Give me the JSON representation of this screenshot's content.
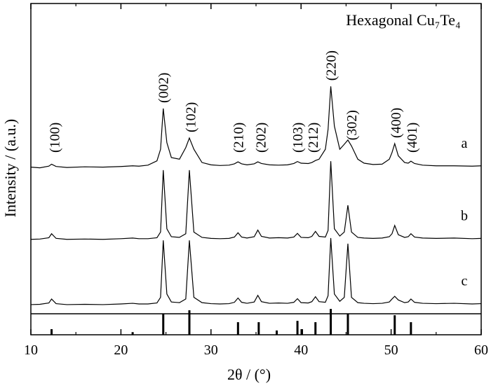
{
  "chart_data": {
    "type": "line",
    "title": "Hexagonal Cu₇Te₄",
    "x_label": "2θ / (°)",
    "y_label": "Intensity / (a.u.)",
    "xlim": [
      10,
      60
    ],
    "xticks": [
      10,
      20,
      30,
      40,
      50,
      60
    ],
    "xminorticks": [
      15,
      25,
      35,
      45,
      55
    ],
    "ylim": [
      0,
      100
    ],
    "x": [
      10,
      11,
      12,
      12.3,
      12.8,
      14,
      16,
      18,
      20,
      21.3,
      22,
      23,
      24,
      24.4,
      24.7,
      25.1,
      25.6,
      26.5,
      27.2,
      27.6,
      28.1,
      29,
      30,
      31,
      32,
      32.6,
      33,
      33.4,
      34,
      34.8,
      35.2,
      35.6,
      36.5,
      37.5,
      38.5,
      39.2,
      39.6,
      40,
      40.8,
      41.2,
      41.6,
      42,
      42.7,
      43,
      43.3,
      43.7,
      44.3,
      44.8,
      45.2,
      45.6,
      46.3,
      47,
      48,
      49,
      49.8,
      50.1,
      50.4,
      50.8,
      51.5,
      51.9,
      52.2,
      52.6,
      53.5,
      55,
      57,
      59,
      60
    ],
    "series": [
      {
        "name": "a",
        "color": "#000000",
        "values": [
          50.6,
          50.4,
          50.9,
          51.5,
          50.8,
          50.5,
          50.7,
          50.6,
          50.8,
          51.0,
          50.9,
          51.2,
          52.5,
          56,
          68.3,
          58,
          53.5,
          53,
          56.5,
          59.4,
          56,
          52,
          51.3,
          51.1,
          51.2,
          51.6,
          52.2,
          51.6,
          51.3,
          51.6,
          52.2,
          51.7,
          51.3,
          51.2,
          51.3,
          51.7,
          52.3,
          51.8,
          51.7,
          52,
          52.6,
          53,
          56,
          62,
          75,
          63,
          56,
          57.5,
          58.8,
          57,
          53,
          51.8,
          51.4,
          51.5,
          53,
          55,
          57.7,
          54,
          52,
          51.8,
          52.4,
          51.7,
          51.2,
          51,
          51,
          50.9,
          51
        ]
      },
      {
        "name": "b",
        "color": "#000000",
        "values": [
          28.8,
          28.9,
          29.3,
          30.5,
          29.1,
          28.8,
          28.9,
          28.8,
          29,
          29.2,
          29,
          29,
          29.3,
          31,
          49.7,
          32,
          29.6,
          29.4,
          30.5,
          49.7,
          31,
          29.4,
          29.1,
          29,
          29.1,
          29.5,
          30.8,
          29.5,
          29.2,
          29.6,
          31.6,
          29.7,
          29.2,
          29.3,
          29.2,
          29.5,
          30.6,
          29.4,
          29.3,
          29.7,
          31.2,
          29.7,
          29.5,
          31.5,
          52.4,
          32,
          29.8,
          31,
          39.1,
          31,
          29.4,
          29.2,
          29.1,
          29.2,
          29.6,
          30.5,
          33,
          30.2,
          29.4,
          29.6,
          30.5,
          29.5,
          29.2,
          29.1,
          29.2,
          29,
          29.1
        ]
      },
      {
        "name": "c",
        "color": "#000000",
        "values": [
          9.1,
          9.2,
          9.6,
          10.8,
          9.4,
          9.1,
          9.2,
          9.1,
          9.3,
          9.5,
          9.3,
          9.3,
          9.6,
          11.3,
          28.5,
          12.3,
          9.9,
          9.7,
          10.8,
          28.5,
          11.3,
          9.7,
          9.4,
          9.3,
          9.4,
          9.8,
          11.1,
          9.8,
          9.5,
          9.9,
          11.9,
          10,
          9.5,
          9.6,
          9.5,
          9.8,
          10.9,
          9.7,
          9.6,
          10,
          11.5,
          10,
          9.8,
          11.8,
          29.2,
          12.3,
          10.1,
          11.3,
          27.5,
          11.3,
          9.7,
          9.5,
          9.4,
          9.5,
          9.9,
          10.8,
          11.6,
          10.5,
          9.7,
          9.9,
          10.8,
          9.8,
          9.5,
          9.4,
          9.5,
          9.3,
          9.4
        ]
      }
    ],
    "reference": {
      "color": "#000000",
      "x": [
        12.3,
        21.3,
        24.7,
        27.6,
        33,
        35.3,
        37.3,
        39.6,
        40.1,
        41.6,
        43.3,
        45.2,
        50.4,
        52.2
      ],
      "values": [
        1.7,
        0.8,
        6.3,
        7.4,
        3.8,
        3.8,
        1.3,
        4.2,
        1.7,
        3.8,
        7.8,
        6.3,
        5.9,
        3.8
      ]
    },
    "peak_labels": [
      {
        "label": "(100)",
        "x": 12.6
      },
      {
        "label": "(002)",
        "x": 24.7
      },
      {
        "label": "(102)",
        "x": 27.7
      },
      {
        "label": "(210)",
        "x": 33.0
      },
      {
        "label": "(202)",
        "x": 35.5
      },
      {
        "label": "(103)",
        "x": 39.6
      },
      {
        "label": "(212)",
        "x": 41.3
      },
      {
        "label": "(220)",
        "x": 43.3
      },
      {
        "label": "(302)",
        "x": 45.6
      },
      {
        "label": "(400)",
        "x": 50.5
      },
      {
        "label": "(401)",
        "x": 52.3
      }
    ]
  }
}
